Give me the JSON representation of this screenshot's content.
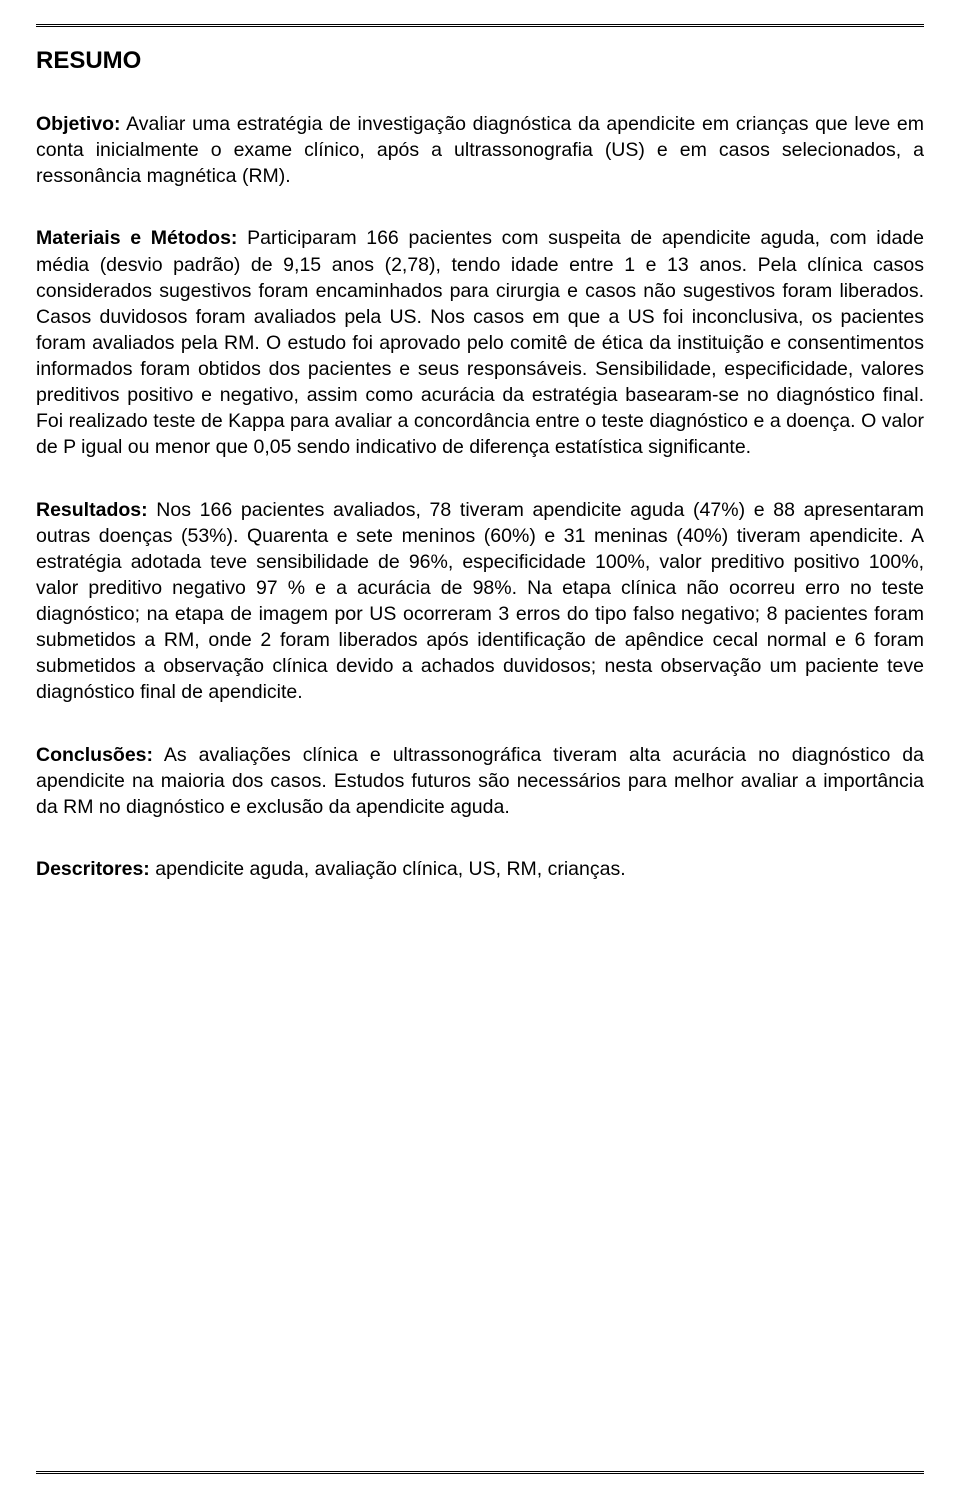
{
  "title": "RESUMO",
  "sections": {
    "objetivo": {
      "label": "Objetivo:",
      "text": " Avaliar uma estratégia de investigação diagnóstica da apendicite em crianças que leve em conta inicialmente o exame clínico, após a ultrassonografia (US) e em casos selecionados, a ressonância magnética (RM)."
    },
    "materiais": {
      "label": "Materiais e Métodos:",
      "text": " Participaram 166 pacientes com suspeita de apendicite aguda, com idade média (desvio padrão) de 9,15 anos (2,78), tendo idade entre 1 e 13 anos. Pela clínica casos considerados sugestivos foram encaminhados para cirurgia e casos não sugestivos foram liberados. Casos duvidosos foram avaliados pela US. Nos casos em que a US foi inconclusiva, os pacientes foram avaliados pela RM. O estudo foi aprovado pelo comitê de ética da instituição e consentimentos informados foram obtidos dos pacientes e seus responsáveis. Sensibilidade, especificidade, valores preditivos positivo e negativo, assim como acurácia da estratégia basearam-se no diagnóstico final. Foi realizado teste de Kappa para avaliar a concordância entre o teste diagnóstico e a doença. O valor de P igual ou menor que 0,05 sendo indicativo de diferença estatística significante."
    },
    "resultados": {
      "label": "Resultados:",
      "text": " Nos 166 pacientes avaliados, 78 tiveram apendicite aguda (47%) e 88 apresentaram outras doenças (53%). Quarenta e sete meninos (60%) e 31 meninas (40%) tiveram apendicite. A estratégia adotada teve sensibilidade de 96%, especificidade 100%, valor preditivo positivo 100%, valor preditivo negativo 97 % e a acurácia de 98%. Na etapa clínica não ocorreu erro no teste diagnóstico; na etapa de imagem por US ocorreram 3 erros do tipo falso negativo;  8 pacientes foram submetidos a RM,  onde 2  foram liberados após identificação de apêndice cecal normal e 6 foram submetidos a observação clínica devido a achados duvidosos; nesta observação um paciente teve diagnóstico final de apendicite."
    },
    "conclusoes": {
      "label": "Conclusões:",
      "text": " As avaliações clínica e ultrassonográfica tiveram alta acurácia no diagnóstico da apendicite na maioria dos casos. Estudos futuros são necessários para melhor avaliar a importância da RM no diagnóstico e exclusão da apendicite aguda."
    },
    "descritores": {
      "label": "Descritores:",
      "text": " apendicite aguda, avaliação clínica, US, RM, crianças."
    }
  },
  "colors": {
    "background": "#ffffff",
    "text": "#000000",
    "rule": "#000000"
  },
  "typography": {
    "title_fontsize": 24,
    "body_fontsize": 19.5,
    "line_height": 1.34,
    "font_family": "Arial"
  }
}
